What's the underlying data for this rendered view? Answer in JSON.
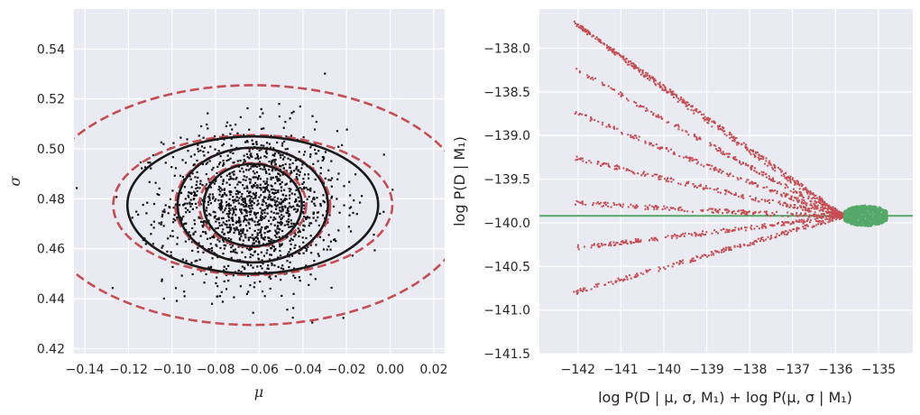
{
  "chart_data": [
    {
      "type": "scatter",
      "panel": "left",
      "title": "",
      "xlabel": "μ",
      "ylabel": "σ",
      "xlim": [
        -0.145,
        0.025
      ],
      "ylim": [
        0.418,
        0.556
      ],
      "xticks": [
        -0.14,
        -0.12,
        -0.1,
        -0.08,
        -0.06,
        -0.04,
        -0.02,
        0.0,
        0.02
      ],
      "xtick_labels": [
        "−0.14",
        "−0.12",
        "−0.10",
        "−0.08",
        "−0.06",
        "−0.04",
        "−0.02",
        "0.00",
        "0.02"
      ],
      "yticks": [
        0.42,
        0.44,
        0.46,
        0.48,
        0.5,
        0.52,
        0.54
      ],
      "ytick_labels": [
        "0.42",
        "0.44",
        "0.46",
        "0.48",
        "0.50",
        "0.52",
        "0.54"
      ],
      "grid": true,
      "background": "#eaeaf2",
      "samples": {
        "color": "#111111",
        "count": 1500,
        "center": [
          -0.063,
          0.477
        ],
        "std": [
          0.02,
          0.0155
        ]
      },
      "contours": {
        "center": [
          -0.063,
          0.4775
        ],
        "solid": {
          "color": "#1a1a1a",
          "radii": [
            [
              0.0225,
              0.0165
            ],
            [
              0.0345,
              0.023
            ],
            [
              0.0575,
              0.0275
            ]
          ]
        },
        "dashed": {
          "color": "#c44e52",
          "radii": [
            [
              0.0245,
              0.0168
            ],
            [
              0.0355,
              0.0229
            ],
            [
              0.064,
              0.028
            ],
            [
              0.099,
              0.048
            ]
          ]
        }
      }
    },
    {
      "type": "scatter",
      "panel": "right",
      "title": "",
      "xlabel": "log P(D | μ, σ, M₁) + log P(μ, σ | M₁)",
      "ylabel": "log P(D | M₁)",
      "xlim": [
        -142.9,
        -134.2
      ],
      "ylim": [
        -141.5,
        -137.55
      ],
      "xticks": [
        -142,
        -141,
        -140,
        -139,
        -138,
        -137,
        -136,
        -135
      ],
      "xtick_labels": [
        "−142",
        "−141",
        "−140",
        "−139",
        "−138",
        "−137",
        "−136",
        "−135"
      ],
      "yticks": [
        -141.5,
        -141.0,
        -140.5,
        -140.0,
        -139.5,
        -139.0,
        -138.5,
        -138.0
      ],
      "ytick_labels": [
        "−141.5",
        "−141.0",
        "−140.5",
        "−140.0",
        "−139.5",
        "−139.0",
        "−138.5",
        "−138.0"
      ],
      "grid": true,
      "background": "#eaeaf2",
      "reference_line": {
        "y": -139.92,
        "color": "#55a868"
      },
      "red_points": {
        "color": "#c44e52",
        "vertex": [
          -135.8,
          -139.92
        ],
        "upper_arm_end": [
          -142.1,
          -137.7
        ],
        "lower_arm_end": [
          -142.4,
          -141.35
        ]
      },
      "green_points": {
        "color": "#55a868",
        "x_range": [
          -135.8,
          -134.8
        ],
        "center_y": -139.92,
        "half_height": 0.12
      }
    }
  ]
}
